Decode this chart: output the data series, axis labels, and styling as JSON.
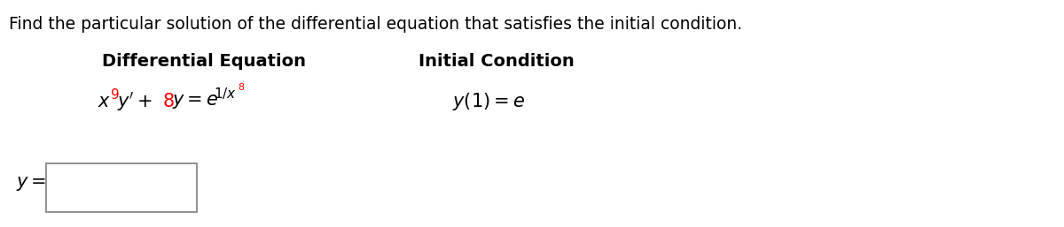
{
  "title": "Find the particular solution of the differential equation that satisfies the initial condition.",
  "title_fontsize": 13.5,
  "title_color": "#000000",
  "background_color": "#ffffff",
  "col1_header": "Differential Equation",
  "col2_header": "Initial Condition",
  "eq_fontsize": 15,
  "header_fontsize": 14,
  "answer_label": "y =",
  "box_color": "#888888"
}
